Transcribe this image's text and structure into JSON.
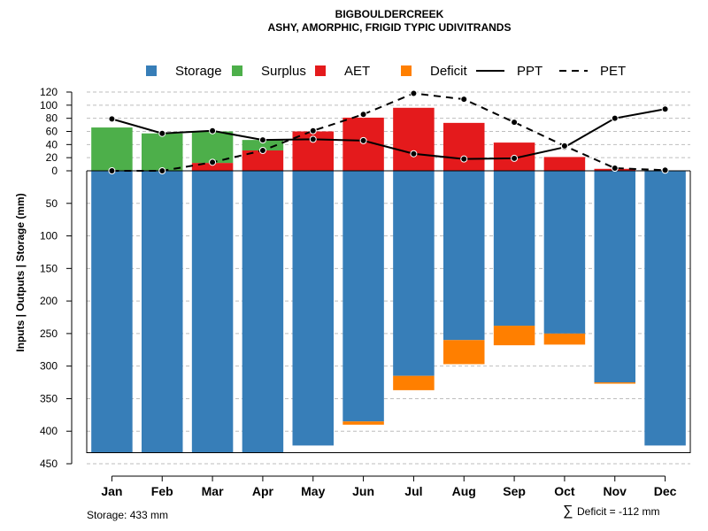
{
  "chart_data": {
    "type": "bar",
    "title": "BIGBOULDERCREEK",
    "subtitle": "ASHY, AMORPHIC, FRIGID TYPIC UDIVITRANDS",
    "ylabel": "Inputs | Outputs | Storage     (mm)",
    "ylim": [
      -450,
      120
    ],
    "y_ticks": [
      120,
      100,
      80,
      60,
      40,
      20,
      0,
      -50,
      -100,
      -150,
      -200,
      -250,
      -300,
      -350,
      -400,
      -450
    ],
    "y_tick_labels": [
      "120",
      "100",
      "80",
      "60",
      "40",
      "20",
      "0",
      "50",
      "100",
      "150",
      "200",
      "250",
      "300",
      "350",
      "400",
      "450"
    ],
    "categories": [
      "Jan",
      "Feb",
      "Mar",
      "Apr",
      "May",
      "Jun",
      "Jul",
      "Aug",
      "Sep",
      "Oct",
      "Nov",
      "Dec"
    ],
    "legend": [
      {
        "key": "storage",
        "label": "Storage",
        "type": "box",
        "color": "#377EB8"
      },
      {
        "key": "surplus",
        "label": "Surplus",
        "type": "box",
        "color": "#4DAF4A"
      },
      {
        "key": "aet",
        "label": "AET",
        "type": "box",
        "color": "#E41A1C"
      },
      {
        "key": "deficit",
        "label": "Deficit",
        "type": "box",
        "color": "#FF7F00"
      },
      {
        "key": "ppt",
        "label": "PPT",
        "type": "line",
        "color": "#000000"
      },
      {
        "key": "pet",
        "label": "PET",
        "type": "dash",
        "color": "#000000"
      }
    ],
    "series": [
      {
        "name": "Storage",
        "values": [
          433,
          433,
          433,
          433,
          422,
          385,
          315,
          260,
          238,
          250,
          325,
          422
        ]
      },
      {
        "name": "Deficit",
        "values": [
          0,
          0,
          0,
          0,
          0,
          5,
          22,
          37,
          30,
          17,
          2,
          0
        ]
      },
      {
        "name": "AET",
        "values": [
          0,
          0,
          12,
          31,
          60,
          81,
          96,
          73,
          43,
          21,
          3,
          0
        ]
      },
      {
        "name": "Surplus",
        "values": [
          66,
          57,
          48,
          16,
          0,
          0,
          0,
          0,
          0,
          0,
          0,
          0
        ]
      },
      {
        "name": "PPT",
        "values": [
          79,
          57,
          61,
          47,
          48,
          46,
          26,
          18,
          19,
          36,
          80,
          94
        ]
      },
      {
        "name": "PET",
        "values": [
          0,
          0,
          13,
          31,
          61,
          86,
          118,
          109,
          74,
          38,
          4,
          1
        ]
      }
    ],
    "colors": {
      "storage": "#377EB8",
      "surplus": "#4DAF4A",
      "aet": "#E41A1C",
      "deficit": "#FF7F00",
      "grid": "#BEBEBE"
    },
    "storage_note": "Storage: 433 mm",
    "deficit_note_symbol": "∑",
    "deficit_note": "Deficit = -112 mm"
  }
}
